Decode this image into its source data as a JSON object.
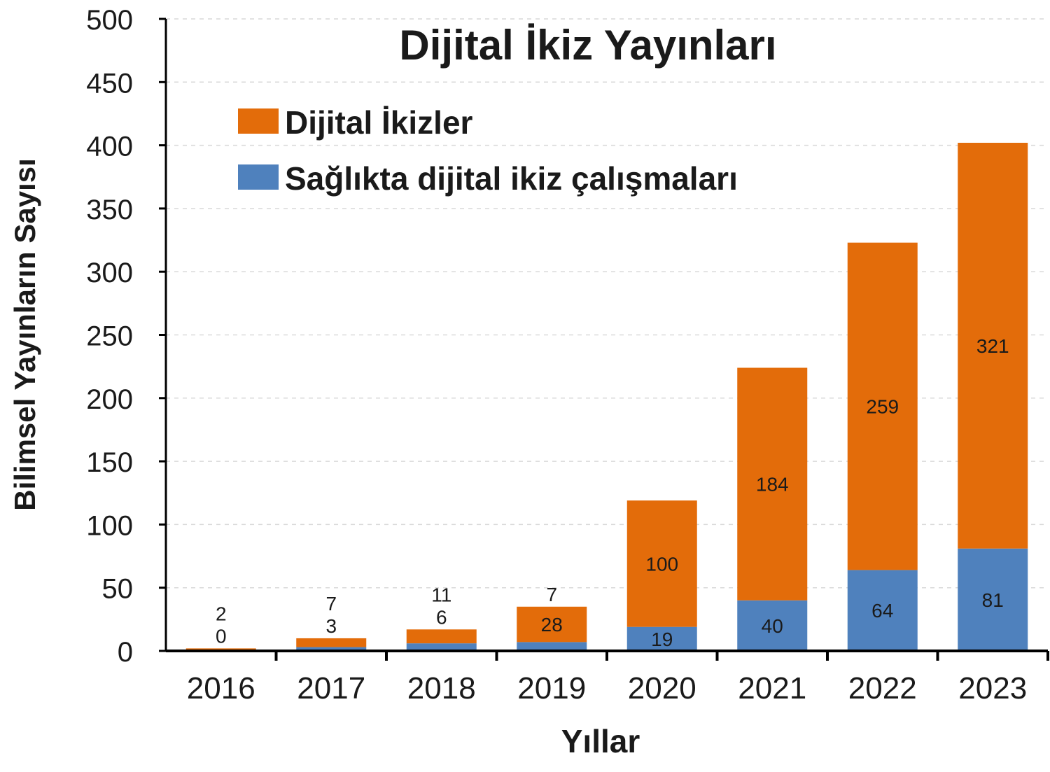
{
  "chart_data": {
    "type": "bar",
    "stacked": true,
    "title": "Dijital İkiz Yayınları",
    "xlabel": "Yıllar",
    "ylabel": "Bilimsel Yayınların Sayısı",
    "ylim": [
      0,
      500
    ],
    "yticks": [
      0,
      50,
      100,
      150,
      200,
      250,
      300,
      350,
      400,
      450,
      500
    ],
    "grid": true,
    "legend_position": "top-left",
    "categories": [
      "2016",
      "2017",
      "2018",
      "2019",
      "2020",
      "2021",
      "2022",
      "2023"
    ],
    "series": [
      {
        "name": "Sağlıkta dijital ikiz çalışmaları",
        "color": "#4f81bd",
        "values": [
          0,
          3,
          6,
          7,
          19,
          40,
          64,
          81
        ]
      },
      {
        "name": "Dijital İkizler",
        "color": "#e36c0a",
        "values": [
          2,
          7,
          11,
          28,
          100,
          184,
          259,
          321
        ]
      }
    ],
    "legend_order": [
      1,
      0
    ]
  }
}
